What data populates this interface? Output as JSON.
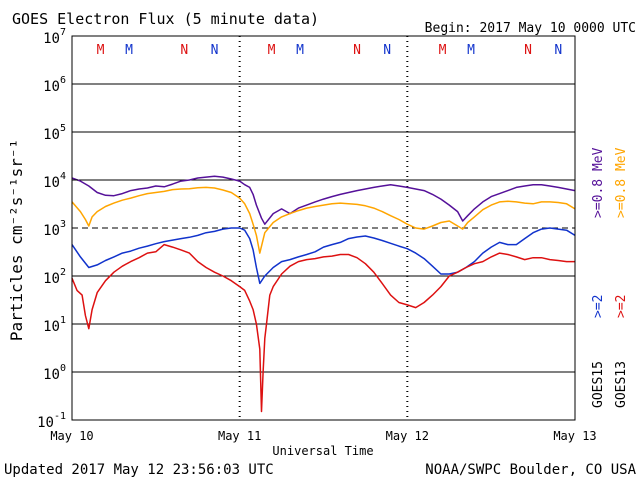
{
  "chart_data": {
    "type": "line",
    "title": "GOES Electron Flux (5 minute data)",
    "begin_label": "Begin: 2017 May 10 0000 UTC",
    "xlabel": "Universal Time",
    "ylabel": "Particles cm⁻²s⁻¹sr⁻¹",
    "y_scale": "log",
    "ylim": [
      0.1,
      10000000
    ],
    "xlim_days": [
      0,
      3
    ],
    "x_ticks": [
      {
        "day": 0,
        "label": "May 10"
      },
      {
        "day": 1,
        "label": "May 11"
      },
      {
        "day": 2,
        "label": "May 12"
      },
      {
        "day": 3,
        "label": "May 13"
      }
    ],
    "y_tick_labels": [
      {
        "base": "10",
        "exp": "-1",
        "value": 0.1
      },
      {
        "base": "10",
        "exp": "0",
        "value": 1
      },
      {
        "base": "10",
        "exp": "1",
        "value": 10
      },
      {
        "base": "10",
        "exp": "2",
        "value": 100
      },
      {
        "base": "10",
        "exp": "3",
        "value": 1000
      },
      {
        "base": "10",
        "exp": "4",
        "value": 10000
      },
      {
        "base": "10",
        "exp": "5",
        "value": 100000
      },
      {
        "base": "10",
        "exp": "6",
        "value": 1000000
      },
      {
        "base": "10",
        "exp": "7",
        "value": 10000000
      }
    ],
    "threshold": 1000,
    "grid": true,
    "top_markers": [
      {
        "label": "M",
        "day": 0.17,
        "color": "#dd1111"
      },
      {
        "label": "M",
        "day": 0.34,
        "color": "#1133cc"
      },
      {
        "label": "N",
        "day": 0.67,
        "color": "#dd1111"
      },
      {
        "label": "N",
        "day": 0.85,
        "color": "#1133cc"
      },
      {
        "label": "M",
        "day": 1.19,
        "color": "#dd1111"
      },
      {
        "label": "M",
        "day": 1.36,
        "color": "#1133cc"
      },
      {
        "label": "N",
        "day": 1.7,
        "color": "#dd1111"
      },
      {
        "label": "N",
        "day": 1.88,
        "color": "#1133cc"
      },
      {
        "label": "M",
        "day": 2.21,
        "color": "#dd1111"
      },
      {
        "label": "M",
        "day": 2.38,
        "color": "#1133cc"
      },
      {
        "label": "N",
        "day": 2.72,
        "color": "#dd1111"
      },
      {
        "label": "N",
        "day": 2.9,
        "color": "#1133cc"
      }
    ],
    "right_labels": [
      {
        "text": "GOES15",
        "color": "#000000",
        "col": 0,
        "pos": "bottom"
      },
      {
        "text": ">=2",
        "color": "#1133cc",
        "col": 0,
        "pos": "mid"
      },
      {
        "text": ">=0.8 MeV",
        "color": "#551199",
        "col": 0,
        "pos": "top"
      },
      {
        "text": "GOES13",
        "color": "#000000",
        "col": 1,
        "pos": "bottom"
      },
      {
        "text": ">=2",
        "color": "#dd1111",
        "col": 1,
        "pos": "mid"
      },
      {
        "text": ">=0.8 MeV",
        "color": "#ffa500",
        "col": 1,
        "pos": "top"
      }
    ],
    "series": [
      {
        "name": "GOES15 >=0.8 MeV",
        "color": "#551199",
        "x": [
          0,
          0.05,
          0.1,
          0.15,
          0.2,
          0.25,
          0.3,
          0.35,
          0.4,
          0.45,
          0.5,
          0.55,
          0.6,
          0.65,
          0.7,
          0.75,
          0.8,
          0.85,
          0.9,
          0.95,
          1.0,
          1.03,
          1.06,
          1.08,
          1.1,
          1.13,
          1.15,
          1.2,
          1.25,
          1.3,
          1.35,
          1.4,
          1.45,
          1.5,
          1.55,
          1.6,
          1.65,
          1.7,
          1.75,
          1.8,
          1.85,
          1.9,
          1.95,
          2.0,
          2.05,
          2.1,
          2.15,
          2.2,
          2.25,
          2.3,
          2.33,
          2.36,
          2.4,
          2.45,
          2.5,
          2.55,
          2.6,
          2.65,
          2.7,
          2.75,
          2.8,
          2.85,
          2.9,
          2.95,
          3.0
        ],
        "y": [
          11000,
          9500,
          7500,
          5500,
          4800,
          4700,
          5200,
          6000,
          6500,
          6800,
          7500,
          7200,
          8200,
          9500,
          10000,
          11000,
          11500,
          12000,
          11500,
          10500,
          9500,
          8000,
          7000,
          5000,
          3000,
          1600,
          1200,
          2000,
          2500,
          2000,
          2600,
          3000,
          3500,
          4000,
          4500,
          5000,
          5500,
          6000,
          6500,
          7000,
          7500,
          8000,
          7500,
          7000,
          6500,
          6000,
          5000,
          4000,
          3000,
          2200,
          1400,
          1800,
          2500,
          3500,
          4500,
          5200,
          6000,
          7000,
          7500,
          8000,
          8000,
          7500,
          7000,
          6500,
          6000
        ]
      },
      {
        "name": "GOES13 >=0.8 MeV",
        "color": "#ffa500",
        "x": [
          0,
          0.05,
          0.08,
          0.1,
          0.12,
          0.15,
          0.2,
          0.25,
          0.3,
          0.35,
          0.4,
          0.45,
          0.5,
          0.55,
          0.6,
          0.65,
          0.7,
          0.75,
          0.8,
          0.85,
          0.9,
          0.95,
          1.0,
          1.03,
          1.06,
          1.08,
          1.1,
          1.12,
          1.15,
          1.2,
          1.25,
          1.3,
          1.35,
          1.4,
          1.45,
          1.5,
          1.55,
          1.6,
          1.65,
          1.7,
          1.75,
          1.8,
          1.85,
          1.9,
          1.95,
          2.0,
          2.05,
          2.1,
          2.15,
          2.2,
          2.25,
          2.3,
          2.33,
          2.36,
          2.4,
          2.45,
          2.5,
          2.55,
          2.6,
          2.65,
          2.7,
          2.75,
          2.8,
          2.85,
          2.9,
          2.95,
          3.0
        ],
        "y": [
          3500,
          2200,
          1500,
          1100,
          1700,
          2200,
          2800,
          3300,
          3800,
          4200,
          4700,
          5200,
          5500,
          5800,
          6300,
          6500,
          6600,
          6900,
          7000,
          6800,
          6200,
          5500,
          4200,
          3200,
          2000,
          1200,
          700,
          300,
          800,
          1300,
          1700,
          2000,
          2300,
          2600,
          2800,
          3000,
          3200,
          3300,
          3200,
          3100,
          2900,
          2600,
          2200,
          1800,
          1500,
          1200,
          1000,
          950,
          1100,
          1300,
          1400,
          1100,
          950,
          1300,
          1700,
          2400,
          3000,
          3500,
          3600,
          3500,
          3300,
          3200,
          3500,
          3500,
          3400,
          3200,
          2500
        ]
      },
      {
        "name": "GOES15 >=2 MeV",
        "color": "#1133cc",
        "x": [
          0,
          0.05,
          0.1,
          0.15,
          0.2,
          0.25,
          0.3,
          0.35,
          0.4,
          0.45,
          0.5,
          0.55,
          0.6,
          0.65,
          0.7,
          0.75,
          0.8,
          0.85,
          0.9,
          0.95,
          1.0,
          1.03,
          1.06,
          1.08,
          1.1,
          1.12,
          1.15,
          1.2,
          1.25,
          1.3,
          1.35,
          1.4,
          1.45,
          1.5,
          1.55,
          1.6,
          1.65,
          1.7,
          1.75,
          1.8,
          1.85,
          1.9,
          1.95,
          2.0,
          2.05,
          2.1,
          2.15,
          2.2,
          2.25,
          2.3,
          2.35,
          2.4,
          2.45,
          2.5,
          2.55,
          2.6,
          2.65,
          2.7,
          2.75,
          2.8,
          2.85,
          2.9,
          2.95,
          3.0
        ],
        "y": [
          450,
          250,
          150,
          170,
          210,
          250,
          300,
          330,
          380,
          420,
          470,
          520,
          560,
          600,
          640,
          700,
          800,
          850,
          950,
          1000,
          1000,
          900,
          600,
          350,
          150,
          70,
          100,
          150,
          200,
          220,
          250,
          280,
          320,
          400,
          450,
          500,
          600,
          650,
          680,
          620,
          550,
          480,
          420,
          370,
          300,
          230,
          160,
          110,
          110,
          120,
          150,
          200,
          300,
          400,
          500,
          450,
          450,
          600,
          800,
          950,
          1000,
          950,
          900,
          700
        ]
      },
      {
        "name": "GOES13 >=2 MeV",
        "color": "#dd1111",
        "x": [
          0,
          0.03,
          0.06,
          0.08,
          0.1,
          0.12,
          0.15,
          0.2,
          0.25,
          0.3,
          0.35,
          0.4,
          0.45,
          0.5,
          0.55,
          0.6,
          0.65,
          0.7,
          0.75,
          0.8,
          0.85,
          0.9,
          0.95,
          1.0,
          1.03,
          1.06,
          1.08,
          1.1,
          1.12,
          1.13,
          1.14,
          1.15,
          1.16,
          1.18,
          1.2,
          1.25,
          1.3,
          1.35,
          1.4,
          1.45,
          1.5,
          1.55,
          1.6,
          1.65,
          1.7,
          1.75,
          1.8,
          1.85,
          1.9,
          1.95,
          2.0,
          2.05,
          2.1,
          2.15,
          2.2,
          2.25,
          2.3,
          2.35,
          2.4,
          2.45,
          2.5,
          2.55,
          2.6,
          2.65,
          2.7,
          2.75,
          2.8,
          2.85,
          2.9,
          2.95,
          3.0
        ],
        "y": [
          90,
          50,
          40,
          15,
          8,
          20,
          45,
          80,
          120,
          160,
          200,
          240,
          300,
          320,
          450,
          400,
          350,
          300,
          200,
          150,
          120,
          100,
          80,
          60,
          50,
          30,
          20,
          10,
          3,
          0.15,
          1,
          5,
          10,
          40,
          60,
          110,
          160,
          200,
          220,
          230,
          250,
          260,
          280,
          280,
          240,
          180,
          120,
          70,
          40,
          28,
          25,
          22,
          28,
          40,
          60,
          100,
          120,
          150,
          180,
          200,
          250,
          300,
          280,
          250,
          220,
          240,
          240,
          220,
          210,
          200,
          200
        ]
      }
    ]
  },
  "footer": {
    "updated": "Updated 2017 May 12 23:56:03 UTC",
    "source": "NOAA/SWPC Boulder, CO USA"
  }
}
